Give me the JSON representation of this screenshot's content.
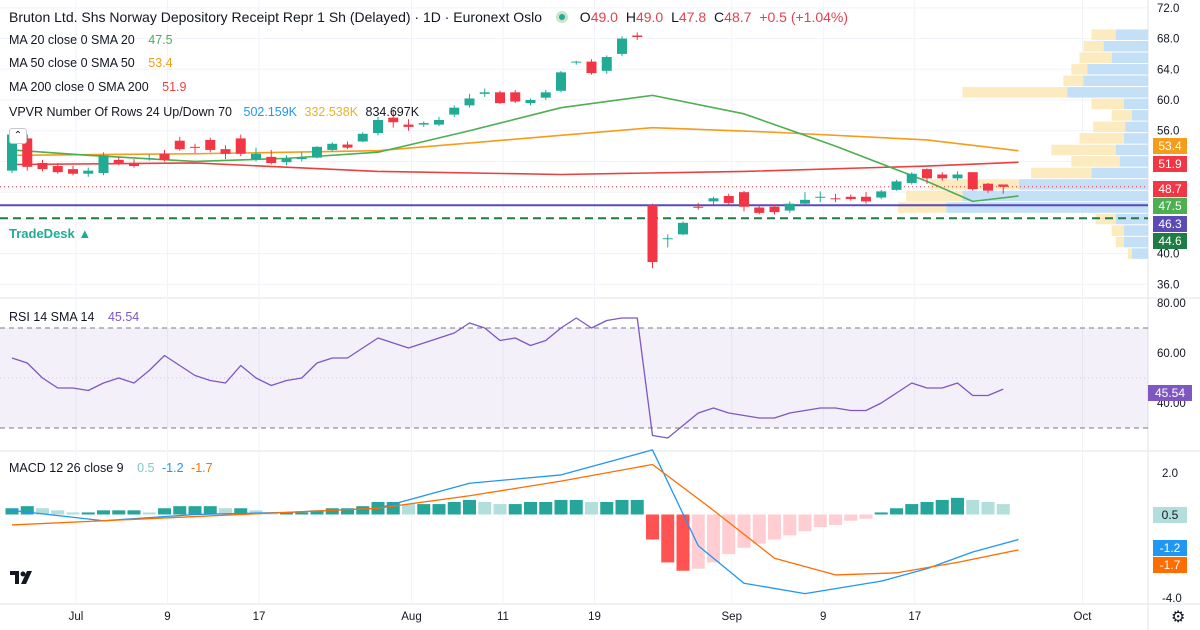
{
  "header": {
    "title": "Bruton Ltd. Shs Norway Depository Receipt Repr 1 Sh (Delayed) · 1D · Euronext Oslo",
    "ohlc": {
      "o_label": "O",
      "o": "49.0",
      "h_label": "H",
      "h": "49.0",
      "l_label": "L",
      "l": "47.8",
      "c_label": "C",
      "c": "48.7",
      "change": "+0.5 (+1.04%)"
    }
  },
  "legend": {
    "ma20_label": "MA 20 close 0 SMA 20",
    "ma20_value": "47.5",
    "ma50_label": "MA 50 close 0 SMA 50",
    "ma50_value": "53.4",
    "ma200_label": "MA 200 close 0 SMA 200",
    "ma200_value": "51.9",
    "vpvr_label": "VPVR Number Of Rows 24 Up/Down 70",
    "vpvr_up": "502.159K",
    "vpvr_down": "332.538K",
    "vpvr_total": "834.697K",
    "tradedesk": "TradeDesk ▲",
    "rsi_label": "RSI 14 SMA 14",
    "rsi_value": "45.54",
    "macd_label": "MACD 12 26 close 9",
    "macd_hist": "0.5",
    "macd_line": "-1.2",
    "macd_signal": "-1.7"
  },
  "price_tags": {
    "ma50": "53.4",
    "ma200": "51.9",
    "close": "48.7",
    "ma20": "47.5",
    "level1": "46.3",
    "level2": "44.6",
    "rsi": "45.54",
    "macd_hist": "0.5",
    "macd_line": "-1.2",
    "macd_signal": "-1.7"
  },
  "icons": {
    "logo": "tradingview-logo-icon",
    "settings": "gear-icon",
    "collapse": "chevron-up-icon"
  },
  "colors": {
    "up": "#22ab94",
    "down": "#f23645",
    "ma20": "#4caf50",
    "ma50": "#f59c1a",
    "ma200": "#e8423f",
    "rsi": "#7e57c2",
    "macd": "#2196f3",
    "signal": "#ff6d00",
    "level": "#5b4bb7",
    "support": "#1e7d45"
  },
  "chart_data": {
    "type": "candlestick",
    "x_labels": [
      "Jul",
      "9",
      "17",
      "Aug",
      "11",
      "19",
      "Sep",
      "9",
      "17",
      "Oct"
    ],
    "price_axis": {
      "ticks": [
        "72.0",
        "68.0",
        "64.0",
        "60.0",
        "56.0",
        "52.0",
        "48.0",
        "44.0",
        "40.0",
        "36.0"
      ],
      "range": [
        35.0,
        72.5
      ]
    },
    "candles": [
      [
        50.8,
        56.3,
        50.5,
        55.5
      ],
      [
        55.0,
        55.5,
        50.8,
        51.3
      ],
      [
        51.8,
        52.2,
        50.7,
        51.0
      ],
      [
        51.4,
        51.8,
        50.4,
        50.6
      ],
      [
        51.0,
        51.4,
        50.2,
        50.4
      ],
      [
        50.4,
        51.2,
        50.0,
        50.8
      ],
      [
        50.5,
        53.2,
        50.2,
        52.8
      ],
      [
        52.2,
        52.6,
        51.5,
        51.8
      ],
      [
        51.8,
        52.3,
        51.2,
        51.4
      ],
      [
        52.4,
        53.0,
        52.1,
        52.4
      ],
      [
        53.0,
        53.5,
        52.0,
        52.2
      ],
      [
        54.7,
        55.2,
        53.4,
        53.6
      ],
      [
        53.9,
        54.3,
        53.1,
        53.8
      ],
      [
        54.8,
        55.1,
        53.2,
        53.5
      ],
      [
        53.6,
        54.1,
        52.3,
        53.0
      ],
      [
        55.0,
        55.5,
        52.7,
        53.0
      ],
      [
        52.3,
        53.8,
        52.0,
        53.0
      ],
      [
        52.6,
        53.5,
        51.6,
        51.8
      ],
      [
        51.9,
        52.8,
        51.5,
        52.4
      ],
      [
        52.3,
        53.2,
        52.0,
        52.5
      ],
      [
        52.5,
        54.0,
        52.4,
        53.9
      ],
      [
        53.5,
        54.5,
        53.3,
        54.3
      ],
      [
        54.2,
        54.6,
        53.6,
        53.8
      ],
      [
        54.6,
        55.8,
        54.5,
        55.6
      ],
      [
        55.7,
        57.8,
        55.4,
        57.4
      ],
      [
        57.7,
        58.8,
        56.4,
        57.1
      ],
      [
        56.8,
        57.5,
        56.0,
        56.5
      ],
      [
        56.8,
        57.2,
        56.5,
        57.0
      ],
      [
        56.8,
        57.8,
        56.6,
        57.4
      ],
      [
        58.1,
        59.3,
        57.8,
        59.0
      ],
      [
        59.3,
        60.8,
        59.0,
        60.2
      ],
      [
        60.8,
        61.5,
        60.4,
        61.0
      ],
      [
        61.0,
        61.2,
        59.5,
        59.6
      ],
      [
        61.0,
        61.3,
        59.6,
        59.8
      ],
      [
        59.6,
        60.2,
        59.3,
        60.0
      ],
      [
        60.3,
        61.3,
        60.0,
        61.0
      ],
      [
        61.2,
        63.8,
        61.0,
        63.6
      ],
      [
        64.9,
        65.1,
        64.6,
        65.0
      ],
      [
        65.0,
        65.3,
        63.3,
        63.5
      ],
      [
        63.8,
        65.8,
        63.4,
        65.6
      ],
      [
        66.0,
        68.3,
        65.7,
        68.0
      ],
      [
        68.4,
        68.8,
        67.8,
        68.2
      ],
      [
        46.3,
        46.5,
        38.1,
        38.9
      ],
      [
        41.9,
        42.5,
        40.8,
        42.0
      ],
      [
        42.5,
        44.2,
        42.4,
        44.0
      ],
      [
        46.1,
        46.6,
        45.7,
        46.0
      ],
      [
        46.8,
        47.4,
        46.4,
        47.2
      ],
      [
        47.5,
        47.8,
        46.4,
        46.6
      ],
      [
        48.0,
        48.2,
        45.5,
        46.1
      ],
      [
        46.0,
        46.3,
        45.1,
        45.3
      ],
      [
        46.1,
        46.4,
        45.1,
        45.4
      ],
      [
        45.6,
        46.8,
        45.3,
        46.5
      ],
      [
        46.5,
        48.0,
        46.4,
        47.0
      ],
      [
        47.3,
        48.1,
        46.7,
        47.4
      ],
      [
        47.2,
        47.8,
        46.7,
        47.1
      ],
      [
        47.4,
        47.7,
        46.9,
        47.1
      ],
      [
        47.4,
        48.0,
        46.5,
        46.8
      ],
      [
        47.3,
        48.3,
        47.1,
        48.1
      ],
      [
        48.3,
        49.6,
        48.2,
        49.4
      ],
      [
        49.2,
        50.6,
        49.0,
        50.4
      ],
      [
        51.0,
        51.1,
        49.1,
        49.8
      ],
      [
        50.3,
        50.6,
        49.5,
        49.8
      ],
      [
        49.8,
        50.7,
        49.5,
        50.3
      ],
      [
        50.6,
        50.6,
        48.2,
        48.4
      ],
      [
        49.1,
        49.2,
        47.9,
        48.2
      ],
      [
        49.0,
        49.0,
        47.8,
        48.7
      ]
    ],
    "ma20": [
      [
        0,
        53.5
      ],
      [
        5,
        52.8
      ],
      [
        12,
        52.0
      ],
      [
        18,
        52.4
      ],
      [
        24,
        53.2
      ],
      [
        30,
        56.0
      ],
      [
        36,
        59.0
      ],
      [
        42,
        60.6
      ],
      [
        48,
        58.2
      ],
      [
        54,
        54.0
      ],
      [
        60,
        49.4
      ],
      [
        63,
        46.8
      ],
      [
        66,
        47.5
      ]
    ],
    "ma50": [
      [
        0,
        52.8
      ],
      [
        12,
        53.0
      ],
      [
        24,
        53.4
      ],
      [
        36,
        55.4
      ],
      [
        42,
        56.4
      ],
      [
        50,
        55.8
      ],
      [
        60,
        54.8
      ],
      [
        66,
        53.4
      ]
    ],
    "ma200": [
      [
        0,
        51.6
      ],
      [
        12,
        51.8
      ],
      [
        24,
        50.7
      ],
      [
        36,
        50.3
      ],
      [
        48,
        50.7
      ],
      [
        60,
        51.4
      ],
      [
        66,
        51.9
      ]
    ],
    "levels": {
      "horizontal_solid": 46.3,
      "horizontal_dashed": 44.6,
      "close_dotted": 48.7
    },
    "vpvr": {
      "rows": [
        {
          "price": 68.5,
          "up": 30,
          "down": 40
        },
        {
          "price": 67.0,
          "up": 25,
          "down": 55
        },
        {
          "price": 65.5,
          "up": 40,
          "down": 45
        },
        {
          "price": 64.0,
          "up": 20,
          "down": 75
        },
        {
          "price": 62.5,
          "up": 25,
          "down": 80
        },
        {
          "price": 61.0,
          "up": 130,
          "down": 100
        },
        {
          "price": 59.5,
          "up": 40,
          "down": 30
        },
        {
          "price": 58.0,
          "up": 25,
          "down": 20
        },
        {
          "price": 56.5,
          "up": 40,
          "down": 28
        },
        {
          "price": 55.0,
          "up": 55,
          "down": 30
        },
        {
          "price": 53.5,
          "up": 80,
          "down": 40
        },
        {
          "price": 52.0,
          "up": 60,
          "down": 35
        },
        {
          "price": 50.5,
          "up": 75,
          "down": 70
        },
        {
          "price": 49.0,
          "up": 110,
          "down": 160
        },
        {
          "price": 47.5,
          "up": 70,
          "down": 230
        },
        {
          "price": 46.0,
          "up": 60,
          "down": 250
        },
        {
          "price": 44.5,
          "up": 25,
          "down": 40
        },
        {
          "price": 43.0,
          "up": 15,
          "down": 30
        },
        {
          "price": 41.5,
          "up": 10,
          "down": 30
        },
        {
          "price": 40.0,
          "up": 5,
          "down": 20
        }
      ]
    },
    "rsi": {
      "range": [
        22,
        82
      ],
      "ticks": [
        "80.00",
        "60.00",
        "40.00"
      ],
      "bands": [
        70,
        30
      ],
      "points": [
        [
          0,
          58
        ],
        [
          1,
          56
        ],
        [
          2,
          50
        ],
        [
          3,
          46
        ],
        [
          4,
          46
        ],
        [
          5,
          45
        ],
        [
          6,
          48
        ],
        [
          7,
          50
        ],
        [
          8,
          48
        ],
        [
          9,
          53
        ],
        [
          10,
          59
        ],
        [
          11,
          55
        ],
        [
          12,
          51
        ],
        [
          13,
          49
        ],
        [
          14,
          48
        ],
        [
          15,
          55
        ],
        [
          16,
          50
        ],
        [
          17,
          47
        ],
        [
          18,
          49
        ],
        [
          19,
          50
        ],
        [
          20,
          56
        ],
        [
          21,
          58
        ],
        [
          22,
          58
        ],
        [
          23,
          62
        ],
        [
          24,
          66
        ],
        [
          25,
          64
        ],
        [
          26,
          62
        ],
        [
          27,
          64
        ],
        [
          28,
          66
        ],
        [
          29,
          68
        ],
        [
          30,
          72
        ],
        [
          31,
          70
        ],
        [
          32,
          65
        ],
        [
          33,
          66
        ],
        [
          34,
          63
        ],
        [
          35,
          65
        ],
        [
          36,
          70
        ],
        [
          37,
          74
        ],
        [
          38,
          70
        ],
        [
          39,
          73
        ],
        [
          40,
          74
        ],
        [
          41,
          74
        ],
        [
          42,
          27
        ],
        [
          43,
          26
        ],
        [
          44,
          31
        ],
        [
          45,
          36
        ],
        [
          46,
          38
        ],
        [
          47,
          36
        ],
        [
          48,
          35
        ],
        [
          49,
          34
        ],
        [
          50,
          34
        ],
        [
          51,
          36
        ],
        [
          52,
          37
        ],
        [
          53,
          38
        ],
        [
          54,
          38
        ],
        [
          55,
          37
        ],
        [
          56,
          37
        ],
        [
          57,
          40
        ],
        [
          58,
          44
        ],
        [
          59,
          48
        ],
        [
          60,
          46
        ],
        [
          61,
          46
        ],
        [
          62,
          48
        ],
        [
          63,
          43
        ],
        [
          64,
          43
        ],
        [
          65,
          45.54
        ]
      ]
    },
    "macd": {
      "range": [
        -4.2,
        3.0
      ],
      "ticks": [
        "2.0",
        "0.0",
        "-4.0"
      ],
      "hist": [
        0.3,
        0.4,
        0.3,
        0.2,
        0.1,
        0.1,
        0.2,
        0.2,
        0.2,
        0.1,
        0.3,
        0.4,
        0.4,
        0.4,
        0.3,
        0.3,
        0.2,
        0.1,
        0.1,
        0.1,
        0.2,
        0.3,
        0.3,
        0.4,
        0.6,
        0.6,
        0.5,
        0.5,
        0.5,
        0.6,
        0.7,
        0.6,
        0.5,
        0.5,
        0.6,
        0.6,
        0.7,
        0.7,
        0.6,
        0.6,
        0.7,
        0.7,
        -1.2,
        -2.3,
        -2.7,
        -2.6,
        -2.3,
        -1.9,
        -1.6,
        -1.4,
        -1.2,
        -1.0,
        -0.8,
        -0.6,
        -0.5,
        -0.3,
        -0.2,
        0.1,
        0.3,
        0.5,
        0.6,
        0.7,
        0.8,
        0.7,
        0.6,
        0.5
      ],
      "macd_line": [
        [
          0,
          0.2
        ],
        [
          6,
          -0.3
        ],
        [
          12,
          0.0
        ],
        [
          18,
          0.1
        ],
        [
          24,
          0.3
        ],
        [
          30,
          1.5
        ],
        [
          36,
          1.9
        ],
        [
          42,
          3.1
        ],
        [
          45,
          -1.5
        ],
        [
          48,
          -3.3
        ],
        [
          52,
          -3.8
        ],
        [
          57,
          -3.2
        ],
        [
          60,
          -2.6
        ],
        [
          63,
          -1.8
        ],
        [
          66,
          -1.2
        ]
      ],
      "signal_line": [
        [
          0,
          -0.5
        ],
        [
          12,
          -0.1
        ],
        [
          24,
          0.3
        ],
        [
          30,
          0.9
        ],
        [
          36,
          1.6
        ],
        [
          42,
          2.4
        ],
        [
          46,
          0.2
        ],
        [
          50,
          -2.1
        ],
        [
          54,
          -2.9
        ],
        [
          58,
          -2.8
        ],
        [
          62,
          -2.3
        ],
        [
          66,
          -1.7
        ]
      ]
    }
  }
}
